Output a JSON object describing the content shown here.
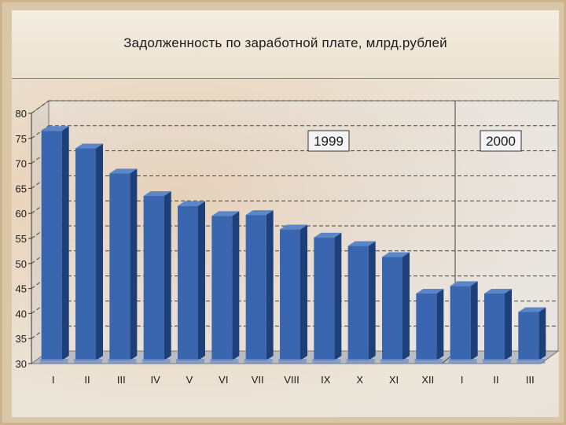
{
  "colors": {
    "bar_front": "#3a66b0",
    "bar_side": "#1e3f78",
    "bar_top": "#5b86c8",
    "grid": "#444444",
    "floor": "#b9bcc2"
  },
  "chart_data": {
    "type": "bar",
    "title": "Задолженность по заработной плате,  млрд.рублей",
    "xlabel": "",
    "ylabel": "",
    "ylim": [
      30,
      80
    ],
    "yticks": [
      30,
      35,
      40,
      45,
      50,
      55,
      60,
      65,
      70,
      75,
      80
    ],
    "categories": [
      "I",
      "II",
      "III",
      "IV",
      "V",
      "VI",
      "VII",
      "VIII",
      "IX",
      "X",
      "XI",
      "XII",
      "I",
      "II",
      "III"
    ],
    "values": [
      76.5,
      73,
      68,
      63.5,
      61.5,
      59.5,
      59.7,
      56.8,
      55.2,
      53.5,
      51.3,
      44,
      45.5,
      44,
      40.3
    ],
    "groups": [
      {
        "label": "1999",
        "start": 0,
        "end": 11
      },
      {
        "label": "2000",
        "start": 12,
        "end": 14
      }
    ],
    "grid": true
  }
}
